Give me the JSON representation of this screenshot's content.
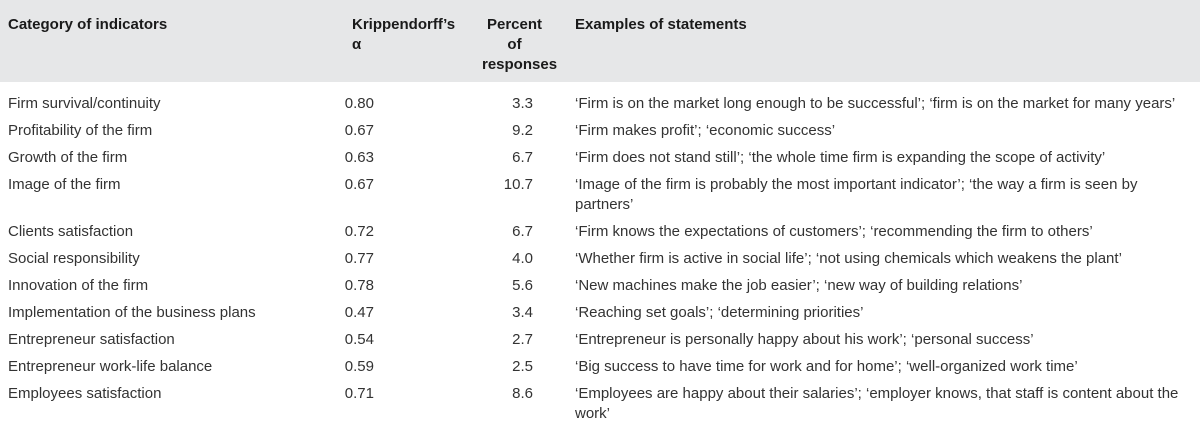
{
  "table": {
    "headers": [
      "Category of indicators",
      "Krippendorff’s α",
      "Percent of responses",
      "Examples of statements"
    ],
    "rows": [
      {
        "category": "Firm survival/continuity",
        "alpha": "0.80",
        "percent": "3.3",
        "examples": "‘Firm is on the market long enough to be successful’; ‘firm is on the market for many years’"
      },
      {
        "category": "Profitability of the firm",
        "alpha": "0.67",
        "percent": "9.2",
        "examples": "‘Firm makes profit’; ‘economic success’"
      },
      {
        "category": "Growth of the firm",
        "alpha": "0.63",
        "percent": "6.7",
        "examples": "‘Firm does not stand still’; ‘the whole time firm is expanding the scope of activity’"
      },
      {
        "category": "Image of the firm",
        "alpha": "0.67",
        "percent": "10.7",
        "examples": "‘Image of the firm is probably the most important indicator’; ‘the way a firm is seen by partners’"
      },
      {
        "category": "Clients satisfaction",
        "alpha": "0.72",
        "percent": "6.7",
        "examples": "‘Firm knows the expectations of customers’; ‘recommending the firm to others’"
      },
      {
        "category": "Social responsibility",
        "alpha": "0.77",
        "percent": "4.0",
        "examples": "‘Whether firm is active in social life’; ‘not using chemicals which weakens the plant’"
      },
      {
        "category": "Innovation of the firm",
        "alpha": "0.78",
        "percent": "5.6",
        "examples": "‘New machines make the job easier’; ‘new way of building relations’"
      },
      {
        "category": "Implementation of the business plans",
        "alpha": "0.47",
        "percent": "3.4",
        "examples": "‘Reaching set goals’; ‘determining priorities’"
      },
      {
        "category": "Entrepreneur satisfaction",
        "alpha": "0.54",
        "percent": "2.7",
        "examples": "‘Entrepreneur is personally happy about his work’; ‘personal success’"
      },
      {
        "category": "Entrepreneur work-life balance",
        "alpha": "0.59",
        "percent": "2.5",
        "examples": "‘Big success to have time for work and for home’; ‘well-organized work time’"
      },
      {
        "category": "Employees satisfaction",
        "alpha": "0.71",
        "percent": "8.6",
        "examples": "‘Employees are happy about their salaries’; ‘employer knows, that staff is content about the work’"
      }
    ]
  }
}
